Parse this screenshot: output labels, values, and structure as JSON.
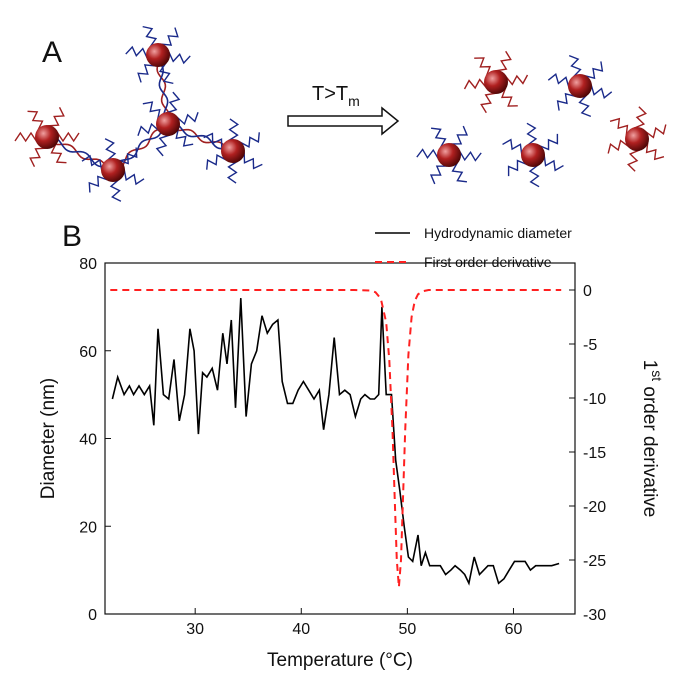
{
  "panel_a": {
    "label": "A",
    "arrow_label": {
      "main": "T>T",
      "sub": "m"
    }
  },
  "chart_data": {
    "type": "line",
    "panel_label": "B",
    "xlabel": "Temperature (°C)",
    "ylabel": "Diameter (nm)",
    "y2label": {
      "base": "1",
      "sup": "st",
      "rest": " order derivative"
    },
    "xlim": [
      21.5,
      65.8
    ],
    "xticks": [
      30,
      40,
      50,
      60
    ],
    "ylim": [
      0,
      80
    ],
    "yticks": [
      0,
      20,
      40,
      60,
      80
    ],
    "y2lim": [
      -30,
      2.5
    ],
    "y2ticks": [
      0,
      -5,
      -10,
      -15,
      -20,
      -25,
      -30
    ],
    "series": [
      {
        "name": "Hydrodynamic diameter",
        "color": "#000000",
        "dash": false,
        "x": [
          22.2,
          22.7,
          23.3,
          23.8,
          24.2,
          24.7,
          25.2,
          25.7,
          26.1,
          26.5,
          27.0,
          27.5,
          28.0,
          28.5,
          29.0,
          29.5,
          29.9,
          30.3,
          30.7,
          31.1,
          31.6,
          32.1,
          32.6,
          33.0,
          33.4,
          33.8,
          34.3,
          34.8,
          35.3,
          35.8,
          36.3,
          36.8,
          37.3,
          37.8,
          38.2,
          38.7,
          39.2,
          39.7,
          40.2,
          40.7,
          41.2,
          41.7,
          42.1,
          42.6,
          43.1,
          43.6,
          44.1,
          44.6,
          45.1,
          45.6,
          46.0,
          46.5,
          46.9,
          47.3,
          47.6,
          48.0,
          48.5,
          48.9,
          49.3,
          49.7,
          50.1,
          50.5,
          51.0,
          51.3,
          51.7,
          52.1,
          52.6,
          53.1,
          53.6,
          54.1,
          54.5,
          55.0,
          55.4,
          55.8,
          56.3,
          56.8,
          57.2,
          57.6,
          58.1,
          58.6,
          59.1,
          59.6,
          60.1,
          60.6,
          61.1,
          61.6,
          62.1,
          62.6,
          63.1,
          63.6,
          64.3
        ],
        "values": [
          49,
          54,
          50,
          52,
          50,
          52,
          50,
          52,
          43,
          65,
          50,
          49,
          58,
          44,
          50,
          65,
          60,
          41,
          55,
          54,
          56,
          51,
          64,
          57,
          67,
          47,
          72,
          45,
          57,
          60,
          68,
          64,
          66,
          67,
          53,
          48,
          48,
          51,
          53,
          51,
          49,
          51,
          42,
          50,
          63,
          50,
          51,
          50,
          45,
          49,
          50,
          49,
          49,
          50,
          70,
          50,
          50,
          35,
          28,
          20,
          13,
          12,
          18,
          11,
          14,
          11,
          11,
          11,
          9,
          10,
          11,
          10,
          9,
          7,
          13,
          9,
          10,
          11,
          11,
          7,
          8,
          10,
          12,
          12,
          12,
          10,
          11,
          11,
          11,
          11,
          11.5
        ]
      },
      {
        "name": "First order derivative",
        "color": "#ff2020",
        "dash": true,
        "axis": "y2",
        "x": [
          22,
          45,
          46.5,
          47,
          47.5,
          48,
          48.3,
          48.6,
          48.8,
          49.0,
          49.2,
          49.4,
          49.6,
          49.8,
          50.1,
          50.4,
          50.7,
          51,
          51.5,
          52,
          64.5
        ],
        "values": [
          0,
          0,
          -0.05,
          -0.2,
          -0.8,
          -3,
          -6.5,
          -13,
          -19,
          -25,
          -27.5,
          -25,
          -19,
          -13,
          -6,
          -2.5,
          -1,
          -0.4,
          -0.1,
          0,
          0
        ]
      }
    ]
  }
}
